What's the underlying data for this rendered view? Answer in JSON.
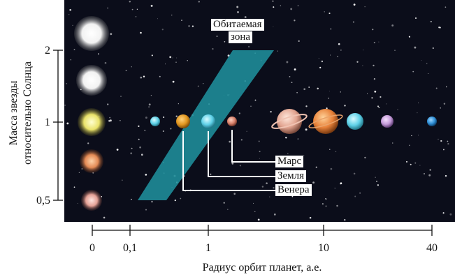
{
  "y_axis": {
    "label_line1": "Масса звезды",
    "label_line2": "относительно Солнца",
    "ticks": [
      "2",
      "1",
      "0,5"
    ]
  },
  "x_axis": {
    "label": "Радиус орбит планет, а.е.",
    "ticks": [
      "0",
      "0,1",
      "1",
      "10",
      "40"
    ]
  },
  "habitable_zone": {
    "label_line1": "Обитаемая",
    "label_line2": "зона",
    "color": "#1f8f9c"
  },
  "callouts": {
    "mars": "Марс",
    "earth": "Земля",
    "venus": "Венера"
  },
  "colors": {
    "background": "#0b0d1a",
    "star_white": "#ffffff",
    "star_yellow": "#f3ec7a",
    "star_orange": "#e89866",
    "star_red": "#e7a79c"
  }
}
